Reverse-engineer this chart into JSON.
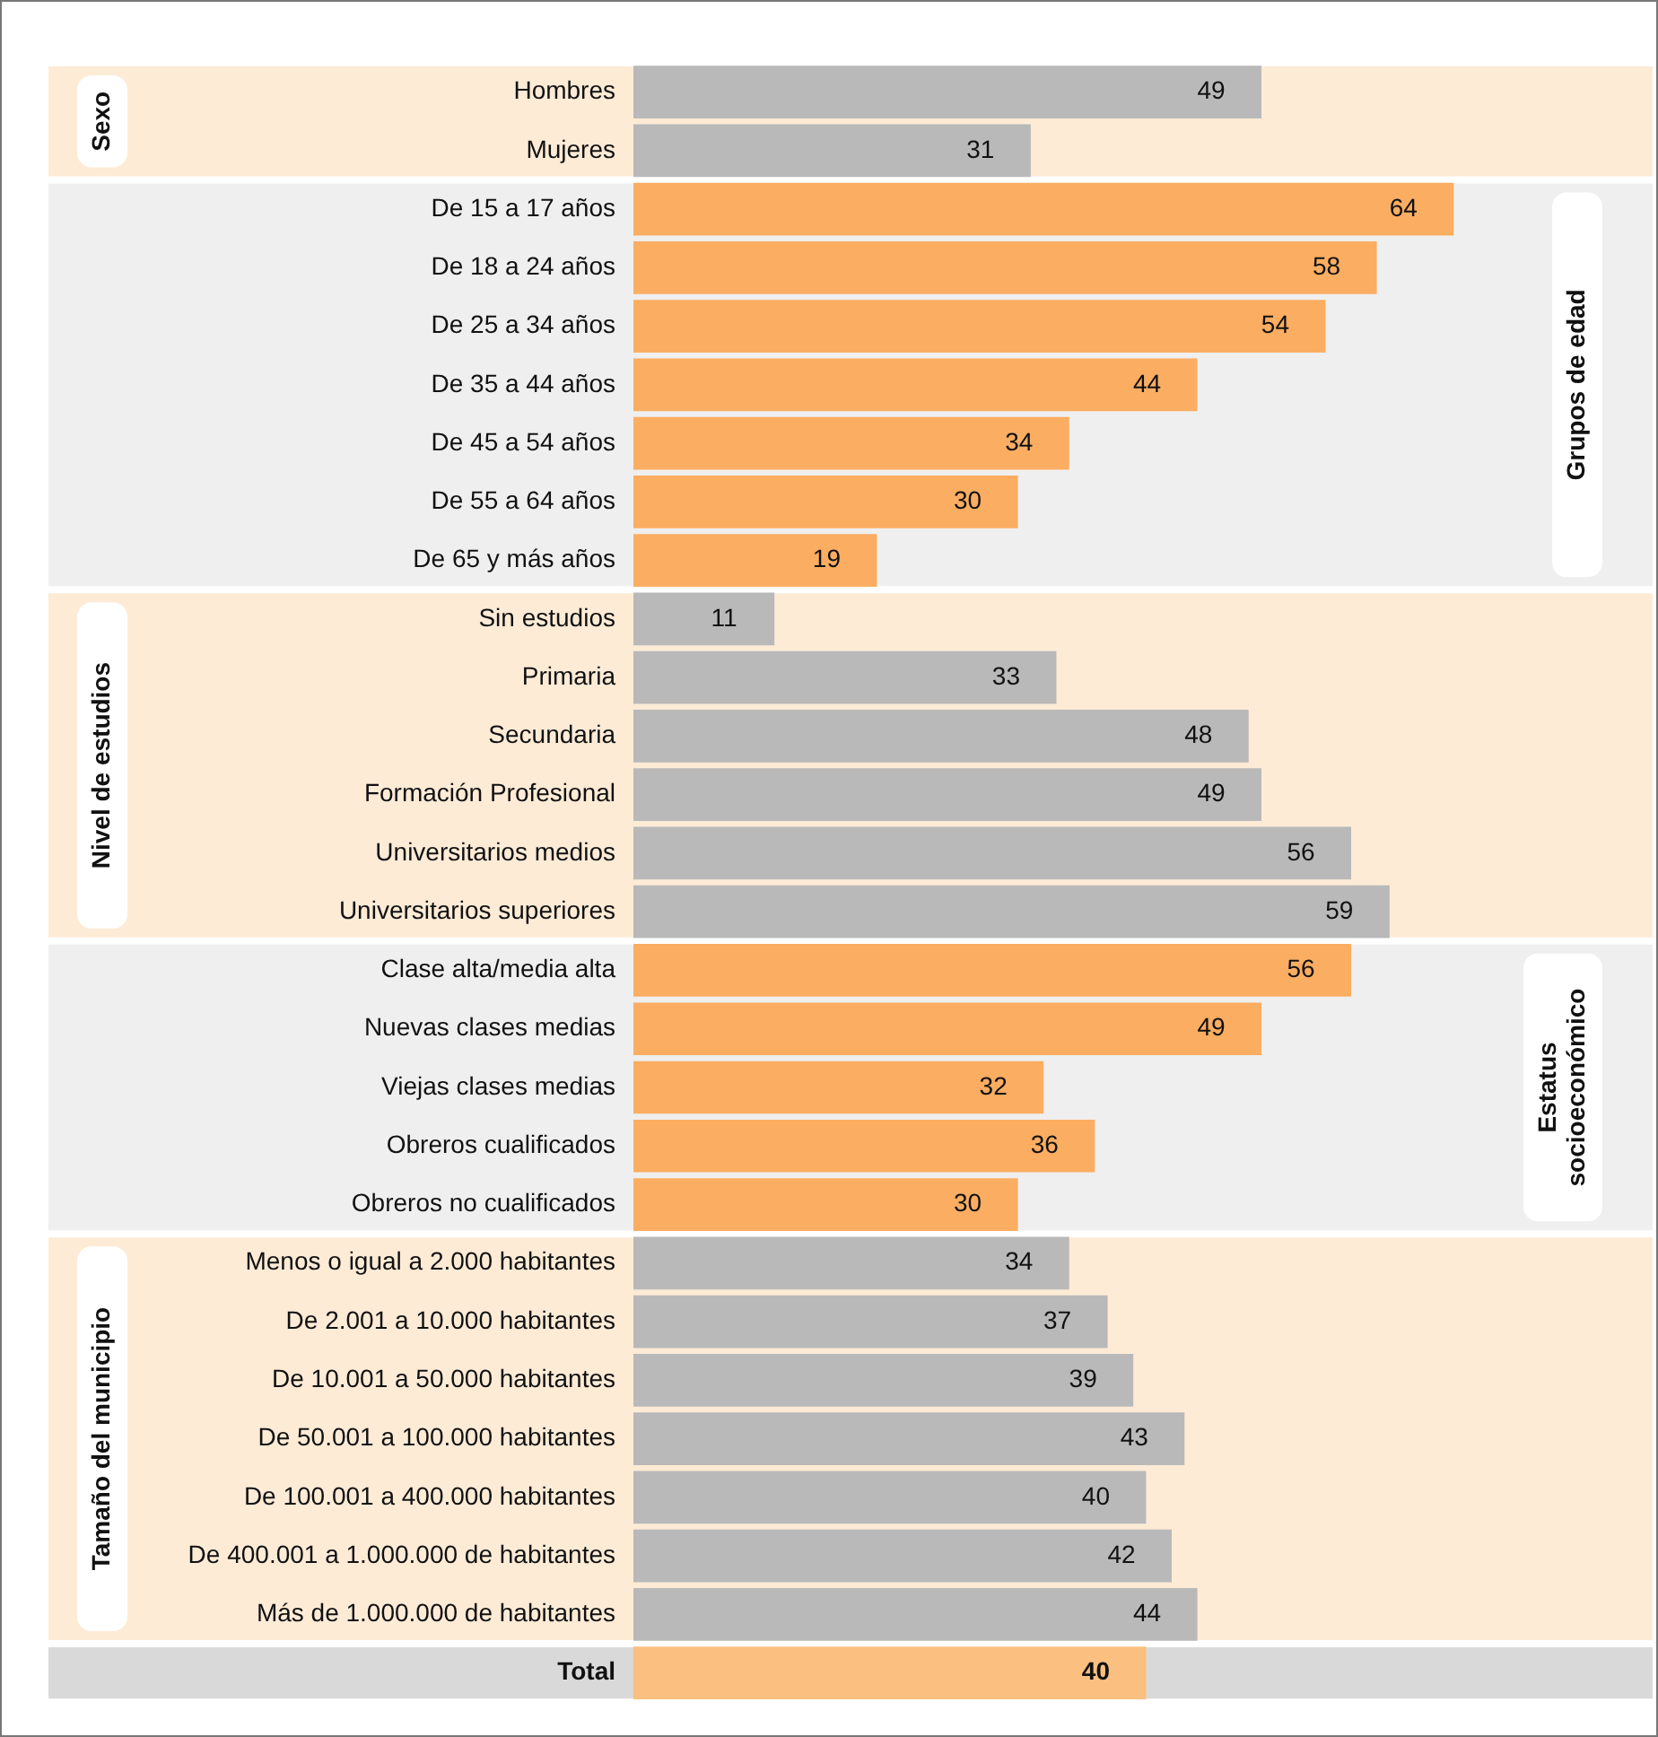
{
  "chart_data": {
    "type": "bar",
    "orientation": "horizontal",
    "categories": [
      "Hombres",
      "Mujeres",
      "De 15 a 17 años",
      "De 18 a 24 años",
      "De 25 a 34 años",
      "De 35 a 44 años",
      "De 45 a 54 años",
      "De 55 a 64 años",
      "De 65 y más años",
      "Sin estudios",
      "Primaria",
      "Secundaria",
      "Formación Profesional",
      "Universitarios medios",
      "Universitarios superiores",
      "Clase alta/media alta",
      "Nuevas clases medias",
      "Viejas clases medias",
      "Obreros cualificados",
      "Obreros no cualificados",
      "Menos o igual a 2.000 habitantes",
      "De 2.001 a 10.000 habitantes",
      "De 10.001 a 50.000 habitantes",
      "De 50.001 a 100.000 habitantes",
      "De 100.001 a 400.000 habitantes",
      "De 400.001 a 1.000.000 de habitantes",
      "Más de 1.000.000 de habitantes",
      "Total"
    ],
    "values": [
      49,
      31,
      64,
      58,
      54,
      44,
      34,
      30,
      19,
      11,
      33,
      48,
      49,
      56,
      59,
      56,
      49,
      32,
      36,
      30,
      34,
      37,
      39,
      43,
      40,
      42,
      44,
      40
    ],
    "colors": [
      "#b9b9b9",
      "#b9b9b9",
      "#fbad62",
      "#fbad62",
      "#fbad62",
      "#fbad62",
      "#fbad62",
      "#fbad62",
      "#fbad62",
      "#b9b9b9",
      "#b9b9b9",
      "#b9b9b9",
      "#b9b9b9",
      "#b9b9b9",
      "#b9b9b9",
      "#fbad62",
      "#fbad62",
      "#fbad62",
      "#fbad62",
      "#fbad62",
      "#b9b9b9",
      "#b9b9b9",
      "#b9b9b9",
      "#b9b9b9",
      "#b9b9b9",
      "#b9b9b9",
      "#b9b9b9",
      "#fbbf80"
    ],
    "data_labels": true,
    "bands": [
      {
        "axis": "y",
        "from": "Hombres",
        "to": "Mujeres",
        "label": "Sexo",
        "color": "#fdebd6"
      },
      {
        "axis": "y",
        "from": "De 15 a 17 años",
        "to": "De 65 y más años",
        "label": "Grupos de edad",
        "color": "#efefef"
      },
      {
        "axis": "y",
        "from": "Sin estudios",
        "to": "Universitarios superiores",
        "label": "Nivel de estudios",
        "color": "#fdebd6"
      },
      {
        "axis": "y",
        "from": "Clase alta/media alta",
        "to": "Obreros no cualificados",
        "label": "Estatus socioeconómico",
        "color": "#efefef"
      },
      {
        "axis": "y",
        "from": "Menos o igual a 2.000 habitantes",
        "to": "Más de 1.000.000 de habitantes",
        "label": "Tamaño del municipio",
        "color": "#fdebd6"
      },
      {
        "axis": "y",
        "from": "Total",
        "to": "Total",
        "color": "#d9d9d9"
      }
    ],
    "grid": false,
    "legend": false
  }
}
